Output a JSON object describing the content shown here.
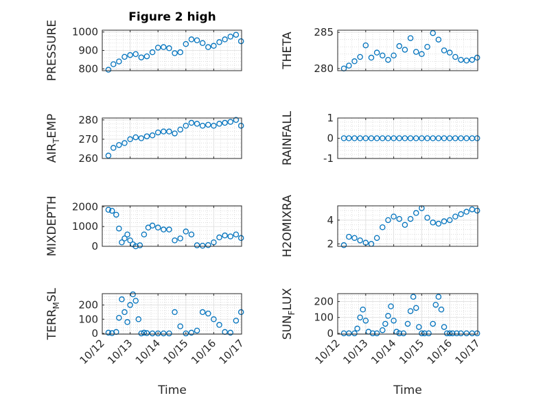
{
  "figure": {
    "title": "Figure 2 high",
    "xlabel": "Time"
  },
  "chart_data": [
    {
      "type": "scatter",
      "ylabel": "PRESSURE",
      "ylabel_sub": "",
      "ylim": [
        790,
        1010
      ],
      "yticks": [
        800,
        900,
        1000
      ],
      "ytick_labels": [
        "800",
        "900",
        "1000"
      ],
      "x": [
        12.22,
        12.4,
        12.6,
        12.8,
        13.0,
        13.2,
        13.4,
        13.6,
        13.8,
        14.0,
        14.2,
        14.4,
        14.6,
        14.8,
        15.0,
        15.2,
        15.4,
        15.6,
        15.8,
        16.0,
        16.2,
        16.4,
        16.6,
        16.8,
        16.98
      ],
      "y": [
        795,
        825,
        840,
        865,
        875,
        880,
        862,
        868,
        890,
        915,
        918,
        912,
        885,
        890,
        935,
        960,
        955,
        940,
        918,
        925,
        945,
        960,
        975,
        985,
        950
      ]
    },
    {
      "type": "scatter",
      "ylabel": "THETA",
      "ylabel_sub": "",
      "ylim": [
        279.7,
        285.3
      ],
      "yticks": [
        280,
        285
      ],
      "ytick_labels": [
        "280",
        "285"
      ],
      "x": [
        12.22,
        12.4,
        12.6,
        12.8,
        13.0,
        13.2,
        13.4,
        13.6,
        13.8,
        14.0,
        14.2,
        14.4,
        14.6,
        14.8,
        15.0,
        15.2,
        15.4,
        15.6,
        15.8,
        16.0,
        16.2,
        16.4,
        16.6,
        16.8,
        16.98
      ],
      "y": [
        280.0,
        280.4,
        281.0,
        281.6,
        283.2,
        281.5,
        282.2,
        281.8,
        281.2,
        281.8,
        283.1,
        282.6,
        284.2,
        282.3,
        282.0,
        283.0,
        284.9,
        284.0,
        282.5,
        282.2,
        281.6,
        281.2,
        281.1,
        281.2,
        281.5
      ]
    },
    {
      "type": "scatter",
      "ylabel": "AIR",
      "ylabel_sub": "T",
      "ylabel_suffix": "EMP",
      "ylim": [
        260,
        281
      ],
      "yticks": [
        260,
        270,
        280
      ],
      "ytick_labels": [
        "260",
        "270",
        "280"
      ],
      "x": [
        12.22,
        12.4,
        12.6,
        12.8,
        13.0,
        13.2,
        13.4,
        13.6,
        13.8,
        14.0,
        14.2,
        14.4,
        14.6,
        14.8,
        15.0,
        15.2,
        15.4,
        15.6,
        15.8,
        16.0,
        16.2,
        16.4,
        16.6,
        16.8,
        16.98
      ],
      "y": [
        261.5,
        265.5,
        267.0,
        268.0,
        270.0,
        271.0,
        270.5,
        271.5,
        272.0,
        273.5,
        274.0,
        274.0,
        273.0,
        275.0,
        277.0,
        278.5,
        278.0,
        277.0,
        277.5,
        277.0,
        278.0,
        278.5,
        279.0,
        280.0,
        277.0
      ]
    },
    {
      "type": "scatter",
      "ylabel": "RAINFALL",
      "ylabel_sub": "",
      "ylim": [
        -1,
        1
      ],
      "yticks": [
        -1,
        0,
        1
      ],
      "ytick_labels": [
        "-1",
        "0",
        "1"
      ],
      "x": [
        12.22,
        12.4,
        12.6,
        12.8,
        13.0,
        13.2,
        13.4,
        13.6,
        13.8,
        14.0,
        14.2,
        14.4,
        14.6,
        14.8,
        15.0,
        15.2,
        15.4,
        15.6,
        15.8,
        16.0,
        16.2,
        16.4,
        16.6,
        16.8,
        16.98
      ],
      "y": [
        0,
        0,
        0,
        0,
        0,
        0,
        0,
        0,
        0,
        0,
        0,
        0,
        0,
        0,
        0,
        0,
        0,
        0,
        0,
        0,
        0,
        0,
        0,
        0,
        0
      ]
    },
    {
      "type": "scatter",
      "ylabel": "MIXDEPTH",
      "ylabel_sub": "",
      "ylim": [
        0,
        2050
      ],
      "yticks": [
        0,
        1000,
        2000
      ],
      "ytick_labels": [
        "0",
        "1000",
        "2000"
      ],
      "x": [
        12.22,
        12.35,
        12.5,
        12.6,
        12.7,
        12.8,
        12.9,
        13.0,
        13.1,
        13.2,
        13.35,
        13.5,
        13.65,
        13.8,
        14.0,
        14.2,
        14.4,
        14.6,
        14.8,
        15.0,
        15.2,
        15.4,
        15.6,
        15.8,
        16.0,
        16.2,
        16.4,
        16.6,
        16.8,
        16.98
      ],
      "y": [
        1850,
        1800,
        1600,
        900,
        200,
        400,
        600,
        300,
        100,
        0,
        50,
        600,
        950,
        1050,
        950,
        850,
        850,
        300,
        400,
        750,
        600,
        50,
        30,
        60,
        200,
        450,
        550,
        500,
        600,
        420
      ]
    },
    {
      "type": "scatter",
      "ylabel": "H2OMIXRA",
      "ylabel_sub": "",
      "ylim": [
        1.8,
        5.2
      ],
      "yticks": [
        2,
        4
      ],
      "ytick_labels": [
        "2",
        "4"
      ],
      "x": [
        12.22,
        12.4,
        12.6,
        12.8,
        13.0,
        13.2,
        13.4,
        13.6,
        13.8,
        14.0,
        14.2,
        14.4,
        14.6,
        14.8,
        15.0,
        15.2,
        15.4,
        15.6,
        15.8,
        16.0,
        16.2,
        16.4,
        16.6,
        16.8,
        16.98
      ],
      "y": [
        1.9,
        2.6,
        2.5,
        2.3,
        2.1,
        2.0,
        2.5,
        3.4,
        4.0,
        4.3,
        4.1,
        3.6,
        4.1,
        4.6,
        5.0,
        4.2,
        3.8,
        3.7,
        3.9,
        4.0,
        4.3,
        4.5,
        4.7,
        4.9,
        4.8
      ]
    },
    {
      "type": "scatter",
      "ylabel": "TERR",
      "ylabel_sub": "M",
      "ylabel_suffix": "SL",
      "ylim": [
        -5,
        280
      ],
      "yticks": [
        0,
        100,
        200
      ],
      "ytick_labels": [
        "0",
        "100",
        "200"
      ],
      "x": [
        12.22,
        12.35,
        12.5,
        12.6,
        12.7,
        12.8,
        12.9,
        13.0,
        13.1,
        13.2,
        13.3,
        13.4,
        13.5,
        13.6,
        13.8,
        14.0,
        14.2,
        14.4,
        14.6,
        14.8,
        15.0,
        15.2,
        15.4,
        15.6,
        15.8,
        16.0,
        16.2,
        16.4,
        16.6,
        16.8,
        16.98
      ],
      "y": [
        5,
        2,
        10,
        110,
        240,
        150,
        80,
        200,
        275,
        230,
        100,
        0,
        5,
        2,
        0,
        0,
        0,
        0,
        150,
        50,
        0,
        5,
        20,
        150,
        140,
        100,
        60,
        10,
        5,
        90,
        150
      ]
    },
    {
      "type": "scatter",
      "ylabel": "SUN",
      "ylabel_sub": "F",
      "ylabel_suffix": "LUX",
      "ylim": [
        -5,
        250
      ],
      "yticks": [
        0,
        100,
        200
      ],
      "ytick_labels": [
        "0",
        "100",
        "200"
      ],
      "x": [
        12.22,
        12.4,
        12.6,
        12.7,
        12.8,
        12.9,
        13.0,
        13.1,
        13.25,
        13.4,
        13.6,
        13.7,
        13.8,
        13.9,
        14.0,
        14.1,
        14.2,
        14.35,
        14.5,
        14.6,
        14.7,
        14.8,
        14.9,
        15.0,
        15.1,
        15.25,
        15.4,
        15.5,
        15.6,
        15.7,
        15.8,
        15.9,
        16.0,
        16.1,
        16.25,
        16.4,
        16.6,
        16.8,
        16.98
      ],
      "y": [
        0,
        0,
        0,
        30,
        100,
        150,
        80,
        10,
        0,
        0,
        20,
        60,
        110,
        170,
        80,
        10,
        0,
        0,
        60,
        140,
        230,
        160,
        40,
        0,
        0,
        0,
        60,
        180,
        230,
        150,
        40,
        0,
        0,
        0,
        0,
        0,
        0,
        0,
        0
      ]
    }
  ]
}
